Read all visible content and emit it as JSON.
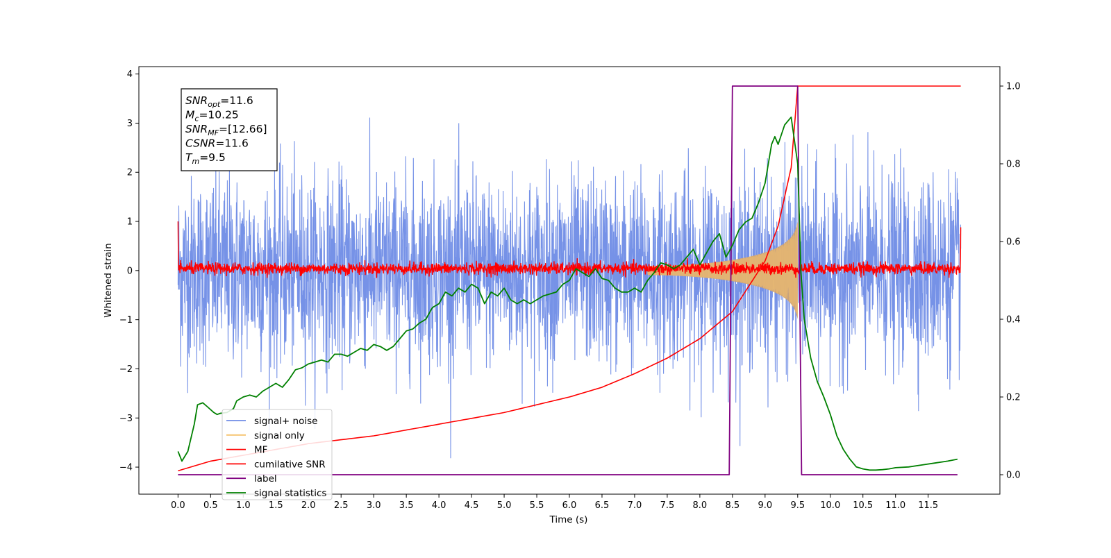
{
  "chart_data": {
    "type": "line",
    "title": "",
    "xlabel": "Time (s)",
    "ylabel": "Whitened strain",
    "xlim": [
      -0.6,
      12.6
    ],
    "ylim": [
      -4.55,
      4.15
    ],
    "y2lim": [
      -0.05,
      1.05
    ],
    "x_ticks": [
      0.0,
      0.5,
      1.0,
      1.5,
      2.0,
      2.5,
      3.0,
      3.5,
      4.0,
      4.5,
      5.0,
      5.5,
      6.0,
      6.5,
      7.0,
      7.5,
      8.0,
      8.5,
      9.0,
      9.5,
      10.0,
      10.5,
      11.0,
      11.5
    ],
    "x_tick_labels": [
      "0.0",
      "0.5",
      "1.0",
      "1.5",
      "2.0",
      "2.5",
      "3.0",
      "3.5",
      "4.0",
      "4.5",
      "5.0",
      "5.5",
      "6.0",
      "6.5",
      "7.0",
      "7.5",
      "8.0",
      "8.5",
      "9.0",
      "9.5",
      "10.0",
      "10.5",
      "11.0",
      "11.5"
    ],
    "y_ticks": [
      -4,
      -3,
      -2,
      -1,
      0,
      1,
      2,
      3,
      4
    ],
    "y_tick_labels": [
      "−4",
      "−3",
      "−2",
      "−1",
      "0",
      "1",
      "2",
      "3",
      "4"
    ],
    "y2_ticks": [
      0.0,
      0.2,
      0.4,
      0.6,
      0.8,
      1.0
    ],
    "y2_tick_labels": [
      "0.0",
      "0.2",
      "0.4",
      "0.6",
      "0.8",
      "1.0"
    ],
    "grid": false,
    "legend_position": "lower-left",
    "textbox": {
      "lines": [
        {
          "var": "SNR",
          "sub": "opt",
          "value": "=11.6"
        },
        {
          "var": "M",
          "sub": "c",
          "value": "=10.25"
        },
        {
          "var": "SNR",
          "sub": "MF",
          "value": "=[12.66]"
        },
        {
          "var": "CSNR",
          "sub": "",
          "value": "=11.6"
        },
        {
          "var": "T",
          "sub": "m",
          "value": "=9.5"
        }
      ]
    },
    "series": [
      {
        "name": "signal+ noise",
        "axis": "left",
        "color": "#6f8ce6",
        "description_values": {
          "x_start": 0.0,
          "x_end": 12.0,
          "approx_range": [
            -4.15,
            3.45
          ],
          "typical_envelope": [
            -1.9,
            2.0
          ]
        }
      },
      {
        "name": "signal only",
        "axis": "left",
        "color": "#f5c26b",
        "chirp": {
          "t_start": 7.2,
          "t_merger": 9.5,
          "peak_amplitude": 1.0
        }
      },
      {
        "name": "MF",
        "axis": "left",
        "color": "#ff0000",
        "description_values": {
          "x_start": 0.0,
          "x_end": 12.0,
          "approx_range": [
            -0.15,
            0.25
          ],
          "edge_values": [
            1.0,
            0.88
          ]
        }
      },
      {
        "name": "cumilative SNR",
        "axis": "right",
        "color": "#ff0000",
        "x": [
          0.0,
          0.5,
          1.0,
          1.5,
          2.0,
          2.5,
          3.0,
          3.5,
          4.0,
          4.5,
          5.0,
          5.5,
          6.0,
          6.5,
          7.0,
          7.5,
          8.0,
          8.5,
          9.0,
          9.2,
          9.4,
          9.5,
          12.0
        ],
        "y": [
          0.01,
          0.035,
          0.05,
          0.065,
          0.08,
          0.09,
          0.1,
          0.115,
          0.13,
          0.145,
          0.16,
          0.18,
          0.2,
          0.225,
          0.26,
          0.3,
          0.35,
          0.42,
          0.55,
          0.64,
          0.79,
          1.0,
          1.0
        ]
      },
      {
        "name": "label",
        "axis": "right",
        "color": "#800080",
        "x": [
          0.0,
          8.45,
          8.5,
          9.5,
          9.56,
          11.95
        ],
        "y": [
          0.0,
          0.0,
          1.0,
          1.0,
          0.0,
          0.0
        ]
      },
      {
        "name": "signal statistics",
        "axis": "right",
        "color": "#008000",
        "x": [
          0.0,
          0.06,
          0.15,
          0.25,
          0.3,
          0.38,
          0.45,
          0.55,
          0.6,
          0.65,
          0.75,
          0.85,
          0.9,
          1.0,
          1.1,
          1.2,
          1.3,
          1.4,
          1.5,
          1.6,
          1.7,
          1.8,
          1.9,
          2.0,
          2.1,
          2.2,
          2.3,
          2.4,
          2.5,
          2.6,
          2.7,
          2.8,
          2.9,
          3.0,
          3.1,
          3.2,
          3.3,
          3.4,
          3.5,
          3.6,
          3.7,
          3.8,
          3.9,
          4.0,
          4.1,
          4.2,
          4.3,
          4.4,
          4.5,
          4.6,
          4.7,
          4.8,
          4.9,
          5.0,
          5.1,
          5.2,
          5.3,
          5.4,
          5.5,
          5.6,
          5.7,
          5.8,
          5.9,
          6.0,
          6.1,
          6.2,
          6.3,
          6.4,
          6.5,
          6.6,
          6.7,
          6.8,
          6.9,
          7.0,
          7.1,
          7.2,
          7.3,
          7.4,
          7.5,
          7.6,
          7.7,
          7.8,
          7.9,
          8.0,
          8.1,
          8.2,
          8.3,
          8.4,
          8.5,
          8.6,
          8.7,
          8.8,
          8.9,
          9.0,
          9.1,
          9.15,
          9.2,
          9.3,
          9.4,
          9.45,
          9.5,
          9.55,
          9.6,
          9.7,
          9.8,
          9.9,
          10.0,
          10.1,
          10.2,
          10.3,
          10.4,
          10.5,
          10.6,
          10.7,
          10.8,
          10.9,
          11.0,
          11.2,
          11.4,
          11.6,
          11.8,
          11.95
        ],
        "y": [
          0.06,
          0.035,
          0.06,
          0.13,
          0.18,
          0.185,
          0.175,
          0.16,
          0.155,
          0.158,
          0.16,
          0.17,
          0.19,
          0.2,
          0.205,
          0.2,
          0.215,
          0.225,
          0.235,
          0.225,
          0.245,
          0.27,
          0.275,
          0.285,
          0.29,
          0.295,
          0.29,
          0.31,
          0.31,
          0.305,
          0.315,
          0.325,
          0.32,
          0.335,
          0.33,
          0.32,
          0.33,
          0.35,
          0.37,
          0.375,
          0.39,
          0.4,
          0.43,
          0.44,
          0.47,
          0.46,
          0.48,
          0.47,
          0.49,
          0.48,
          0.44,
          0.47,
          0.46,
          0.48,
          0.45,
          0.44,
          0.45,
          0.44,
          0.45,
          0.46,
          0.465,
          0.47,
          0.49,
          0.5,
          0.53,
          0.52,
          0.51,
          0.53,
          0.505,
          0.5,
          0.48,
          0.47,
          0.47,
          0.48,
          0.47,
          0.5,
          0.52,
          0.545,
          0.54,
          0.53,
          0.54,
          0.56,
          0.58,
          0.54,
          0.57,
          0.6,
          0.62,
          0.56,
          0.59,
          0.63,
          0.65,
          0.66,
          0.7,
          0.75,
          0.85,
          0.87,
          0.85,
          0.9,
          0.92,
          0.86,
          0.8,
          0.52,
          0.4,
          0.3,
          0.24,
          0.2,
          0.155,
          0.1,
          0.065,
          0.04,
          0.02,
          0.015,
          0.012,
          0.012,
          0.013,
          0.015,
          0.018,
          0.02,
          0.025,
          0.03,
          0.035,
          0.04
        ]
      }
    ]
  }
}
